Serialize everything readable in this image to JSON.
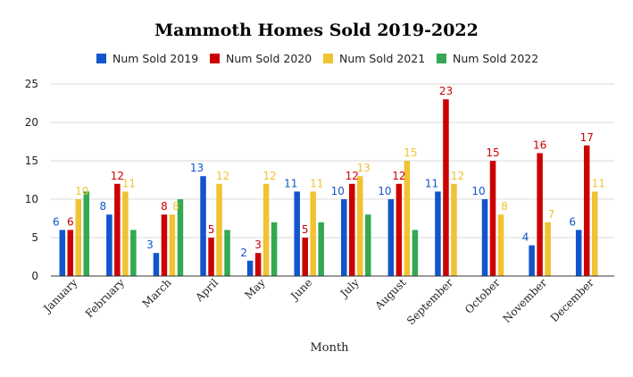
{
  "chart_data": {
    "type": "bar",
    "title": "Mammoth Homes Sold 2019-2022",
    "xlabel": "Month",
    "ylabel": "",
    "ylim": [
      0,
      25
    ],
    "yticks": [
      0,
      5,
      10,
      15,
      20,
      25
    ],
    "grid": true,
    "legend_position": "top",
    "categories": [
      "January",
      "February",
      "March",
      "April",
      "May",
      "June",
      "July",
      "August",
      "September",
      "October",
      "November",
      "December"
    ],
    "series": [
      {
        "name": "Num Sold 2019",
        "color": "#1155cc",
        "values": [
          6,
          8,
          3,
          13,
          2,
          11,
          10,
          10,
          11,
          10,
          4,
          6
        ]
      },
      {
        "name": "Num Sold 2020",
        "color": "#cc0000",
        "values": [
          6,
          12,
          8,
          5,
          3,
          5,
          12,
          12,
          23,
          15,
          16,
          17
        ]
      },
      {
        "name": "Num Sold 2021",
        "color": "#f1c232",
        "values": [
          10,
          11,
          8,
          12,
          12,
          11,
          13,
          15,
          12,
          8,
          7,
          11
        ]
      },
      {
        "name": "Num Sold 2022",
        "color": "#34a853",
        "values": [
          11,
          6,
          10,
          6,
          7,
          7,
          8,
          6,
          null,
          null,
          null,
          null
        ]
      }
    ]
  }
}
